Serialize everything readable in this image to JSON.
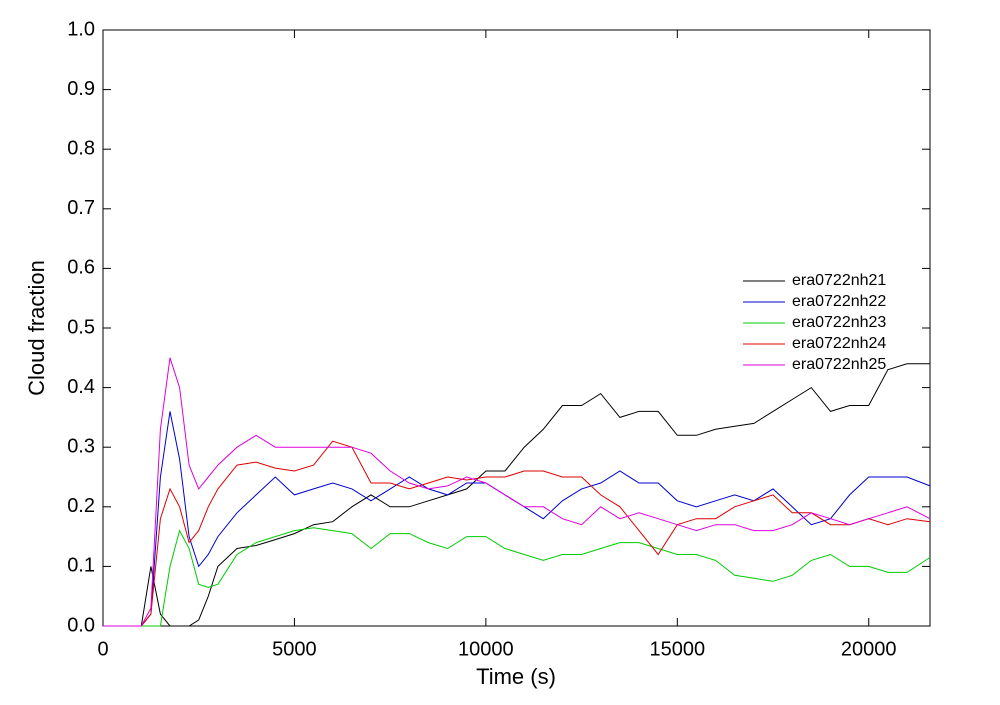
{
  "chart_data": {
    "type": "line",
    "xlabel": "Time (s)",
    "ylabel": "Cloud fraction",
    "xlim": [
      0,
      21600
    ],
    "ylim": [
      0,
      1
    ],
    "xticks": [
      0,
      5000,
      10000,
      15000,
      20000
    ],
    "yticks": [
      {
        "value": 0,
        "label": "0.0"
      },
      0.1,
      0.2,
      0.3,
      0.4,
      0.5,
      0.6,
      0.7,
      0.8,
      0.9,
      {
        "value": 1,
        "label": "1.0"
      }
    ],
    "legend": "right",
    "x": [
      0,
      1000,
      1250,
      1500,
      1750,
      2000,
      2250,
      2500,
      2750,
      3000,
      3500,
      4000,
      4500,
      5000,
      5500,
      6000,
      6500,
      7000,
      7500,
      8000,
      8500,
      9000,
      9500,
      10000,
      10500,
      11000,
      11500,
      12000,
      12500,
      13000,
      13500,
      14000,
      14500,
      15000,
      15500,
      16000,
      16500,
      17000,
      17500,
      18000,
      18500,
      19000,
      19500,
      20000,
      20500,
      21000,
      21600
    ],
    "series": [
      {
        "name": "era0722nh21",
        "color": "#000000",
        "values": [
          0,
          0,
          0.1,
          0.02,
          0,
          0,
          0,
          0.01,
          0.05,
          0.1,
          0.13,
          0.135,
          0.145,
          0.155,
          0.17,
          0.175,
          0.2,
          0.22,
          0.2,
          0.2,
          0.21,
          0.22,
          0.23,
          0.26,
          0.26,
          0.3,
          0.33,
          0.37,
          0.37,
          0.39,
          0.35,
          0.36,
          0.36,
          0.32,
          0.32,
          0.33,
          0.335,
          0.34,
          0.36,
          0.38,
          0.4,
          0.36,
          0.37,
          0.37,
          0.43,
          0.44,
          0.44
        ]
      },
      {
        "name": "era0722nh22",
        "color": "#0000cc",
        "values": [
          0,
          0,
          0.02,
          0.25,
          0.36,
          0.28,
          0.15,
          0.1,
          0.12,
          0.15,
          0.19,
          0.22,
          0.25,
          0.22,
          0.23,
          0.24,
          0.23,
          0.21,
          0.23,
          0.25,
          0.23,
          0.22,
          0.24,
          0.24,
          0.22,
          0.2,
          0.18,
          0.21,
          0.23,
          0.24,
          0.26,
          0.24,
          0.24,
          0.21,
          0.2,
          0.21,
          0.22,
          0.21,
          0.23,
          0.2,
          0.17,
          0.18,
          0.22,
          0.25,
          0.25,
          0.25,
          0.235
        ]
      },
      {
        "name": "era0722nh23",
        "color": "#00cc00",
        "values": [
          0,
          0,
          0,
          0,
          0.1,
          0.16,
          0.13,
          0.07,
          0.065,
          0.07,
          0.12,
          0.14,
          0.15,
          0.16,
          0.165,
          0.16,
          0.155,
          0.13,
          0.155,
          0.155,
          0.14,
          0.13,
          0.15,
          0.15,
          0.13,
          0.12,
          0.11,
          0.12,
          0.12,
          0.13,
          0.14,
          0.14,
          0.13,
          0.12,
          0.12,
          0.11,
          0.085,
          0.08,
          0.075,
          0.085,
          0.11,
          0.12,
          0.1,
          0.1,
          0.09,
          0.09,
          0.115
        ]
      },
      {
        "name": "era0722nh24",
        "color": "#dd0000",
        "values": [
          0,
          0,
          0.02,
          0.18,
          0.23,
          0.2,
          0.14,
          0.16,
          0.2,
          0.23,
          0.27,
          0.275,
          0.265,
          0.26,
          0.27,
          0.31,
          0.3,
          0.24,
          0.24,
          0.23,
          0.24,
          0.25,
          0.245,
          0.25,
          0.25,
          0.26,
          0.26,
          0.25,
          0.25,
          0.22,
          0.2,
          0.16,
          0.12,
          0.17,
          0.18,
          0.18,
          0.2,
          0.21,
          0.22,
          0.19,
          0.19,
          0.17,
          0.17,
          0.18,
          0.17,
          0.18,
          0.175
        ]
      },
      {
        "name": "era0722nh25",
        "color": "#dd00dd",
        "values": [
          0,
          0,
          0.03,
          0.33,
          0.45,
          0.4,
          0.27,
          0.23,
          0.25,
          0.27,
          0.3,
          0.32,
          0.3,
          0.3,
          0.3,
          0.3,
          0.3,
          0.29,
          0.26,
          0.24,
          0.23,
          0.235,
          0.25,
          0.24,
          0.22,
          0.2,
          0.2,
          0.18,
          0.17,
          0.2,
          0.18,
          0.19,
          0.18,
          0.17,
          0.16,
          0.17,
          0.17,
          0.16,
          0.16,
          0.17,
          0.19,
          0.18,
          0.17,
          0.18,
          0.19,
          0.2,
          0.18
        ]
      }
    ]
  }
}
